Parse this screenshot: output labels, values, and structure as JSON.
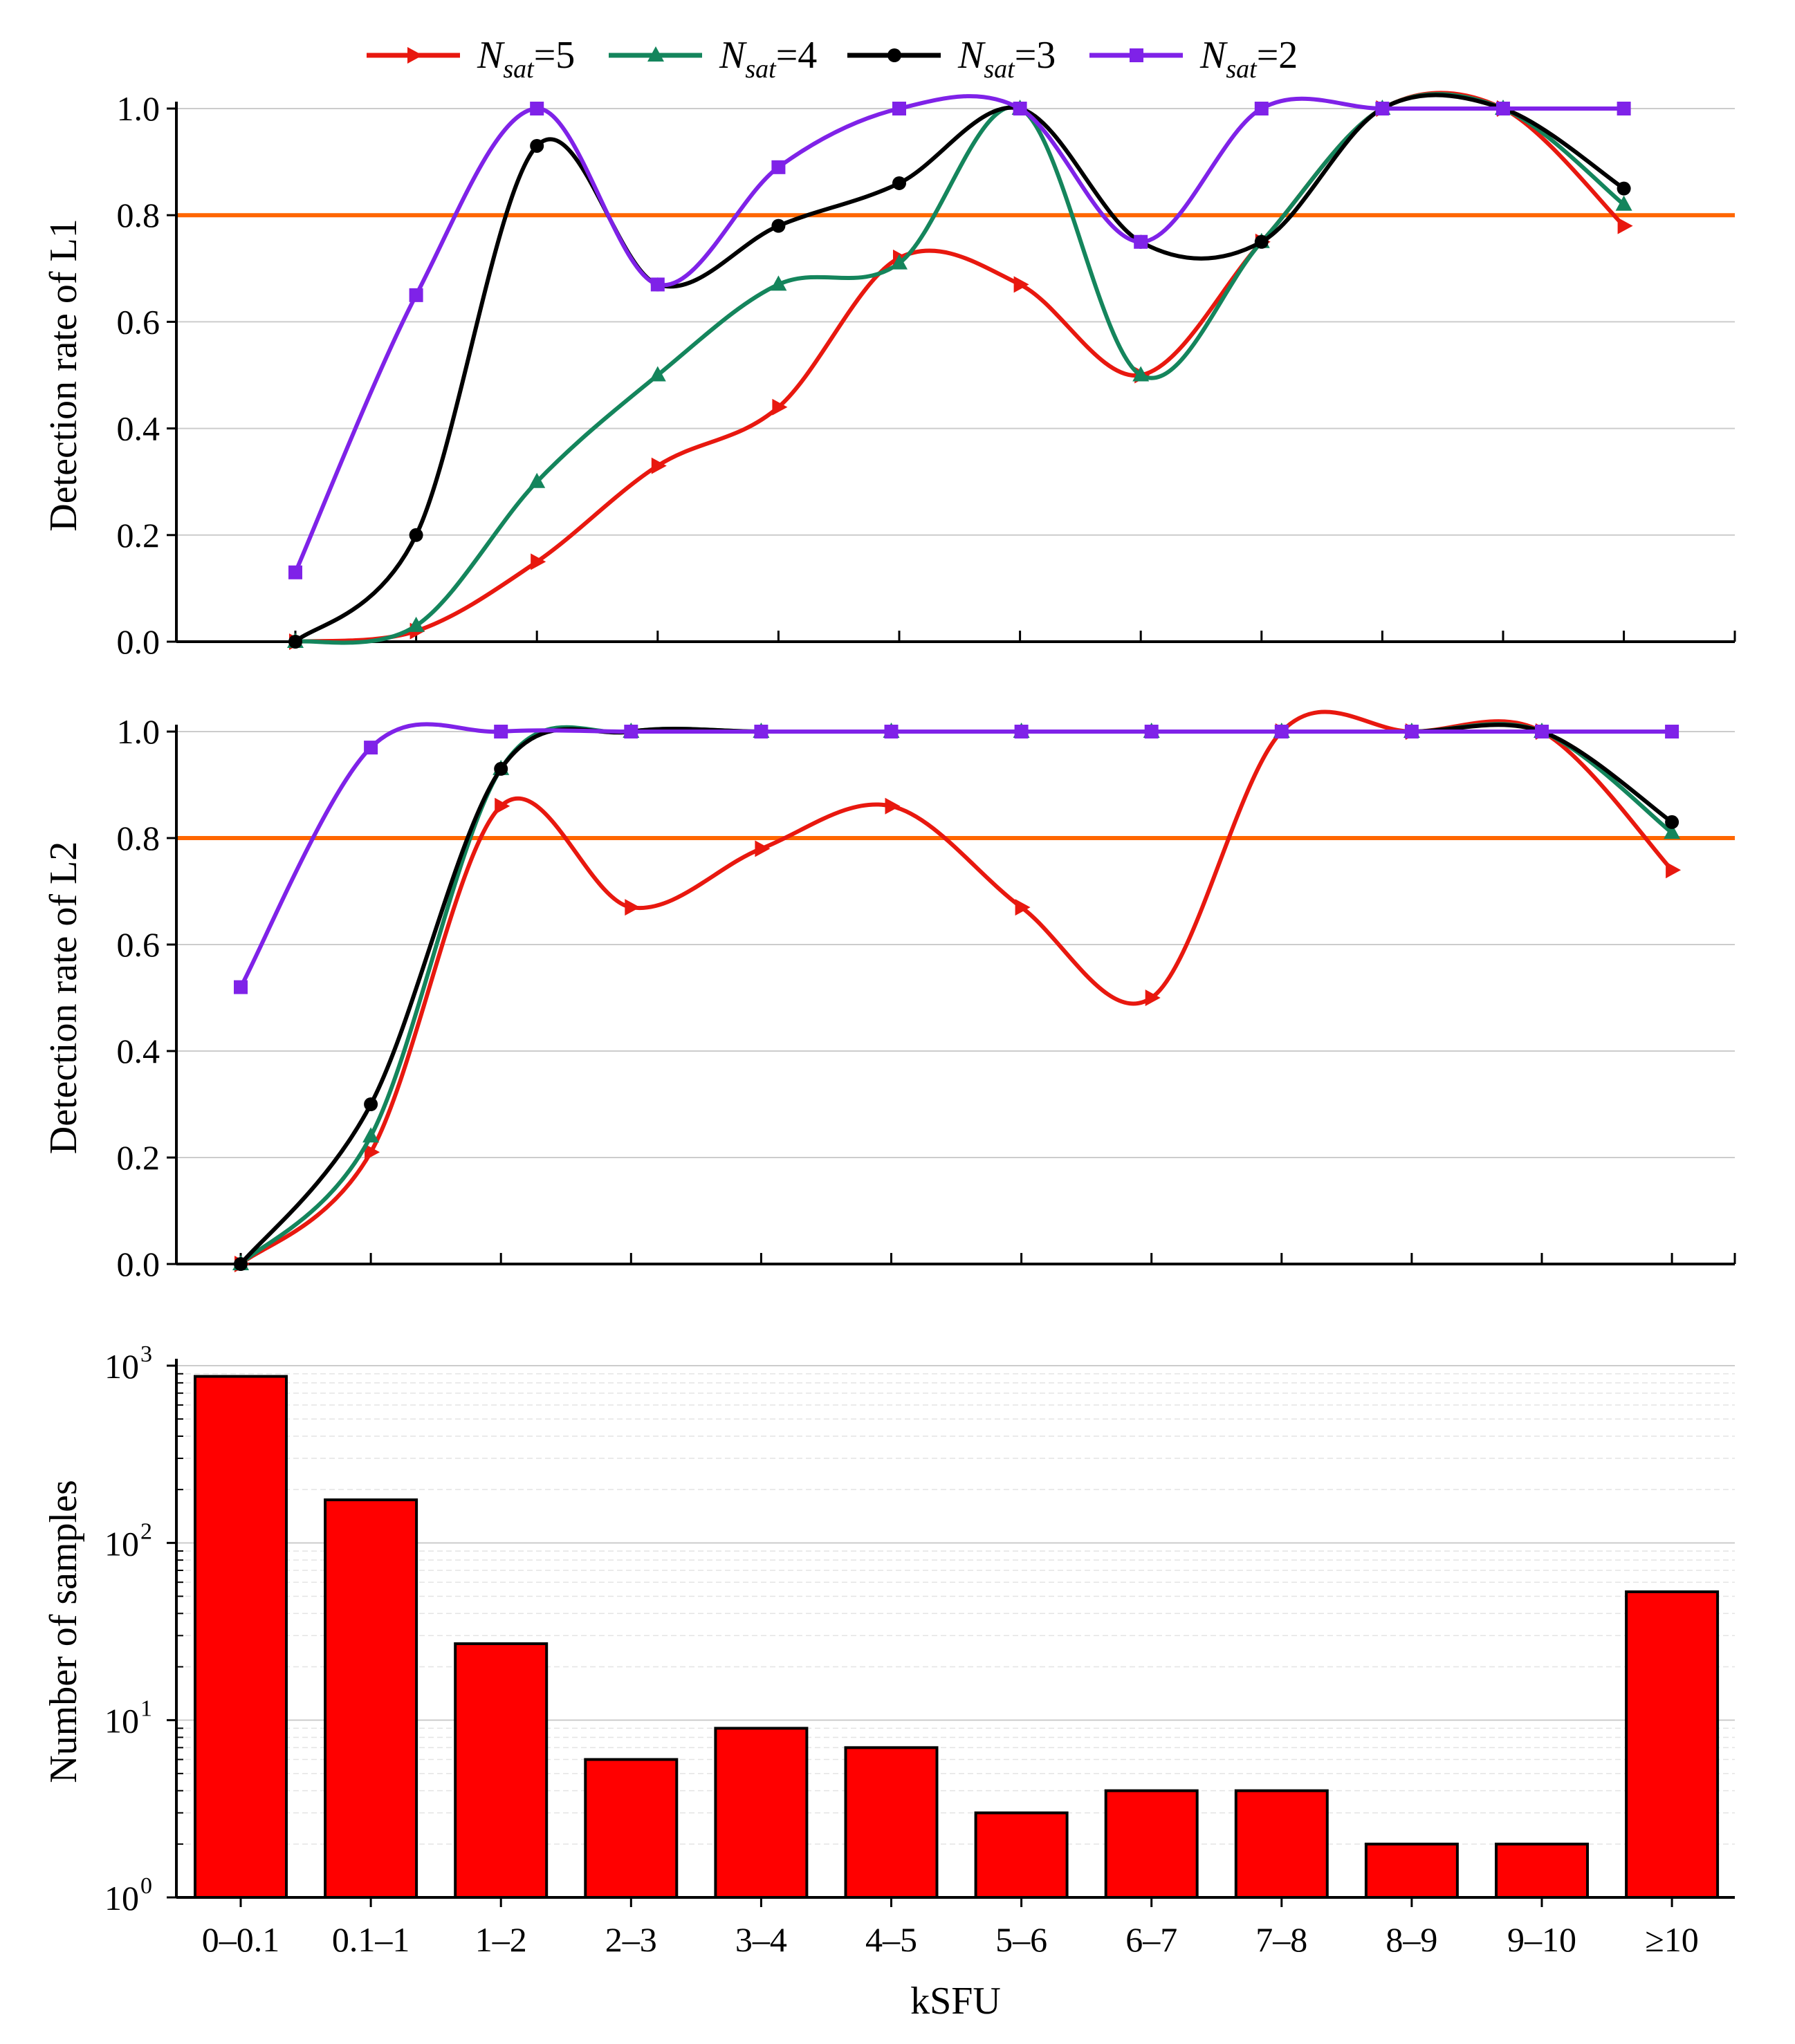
{
  "chart_data": [
    {
      "type": "line",
      "ylabel": "Detection rate of L1",
      "ylim": [
        0,
        1
      ],
      "yticks": [
        "0.0",
        "0.2",
        "0.4",
        "0.6",
        "0.8",
        "1.0"
      ],
      "threshold": 0.8,
      "grid": true,
      "x": [
        1,
        2,
        3,
        4,
        5,
        6,
        7,
        8,
        9,
        10,
        11,
        12
      ],
      "series": [
        {
          "name": "N_sat=5",
          "values": [
            0.0,
            0.02,
            0.15,
            0.33,
            0.44,
            0.72,
            0.67,
            0.5,
            0.75,
            1.0,
            1.0,
            0.78
          ]
        },
        {
          "name": "N_sat=4",
          "values": [
            0.0,
            0.03,
            0.3,
            0.5,
            0.67,
            0.71,
            1.0,
            0.5,
            0.75,
            1.0,
            1.0,
            0.82
          ]
        },
        {
          "name": "N_sat=3",
          "values": [
            0.0,
            0.2,
            0.93,
            0.67,
            0.78,
            0.86,
            1.0,
            0.75,
            0.75,
            1.0,
            1.0,
            0.85
          ]
        },
        {
          "name": "N_sat=2",
          "values": [
            0.13,
            0.65,
            1.0,
            0.67,
            0.89,
            1.0,
            1.0,
            0.75,
            1.0,
            1.0,
            1.0,
            1.0
          ]
        }
      ]
    },
    {
      "type": "line",
      "ylabel": "Detection rate of L2",
      "ylim": [
        0,
        1
      ],
      "yticks": [
        "0.0",
        "0.2",
        "0.4",
        "0.6",
        "0.8",
        "1.0"
      ],
      "threshold": 0.8,
      "grid": true,
      "categories": [
        "0–0.1",
        "0.1–1",
        "1–2",
        "2–3",
        "3–4",
        "4–5",
        "5–6",
        "6–7",
        "7–8",
        "8–9",
        "9–10",
        "≥10"
      ],
      "series": [
        {
          "name": "N_sat=5",
          "values": [
            0.0,
            0.21,
            0.86,
            0.67,
            0.78,
            0.86,
            0.67,
            0.5,
            1.0,
            1.0,
            1.0,
            0.74
          ]
        },
        {
          "name": "N_sat=4",
          "values": [
            0.0,
            0.24,
            0.93,
            1.0,
            1.0,
            1.0,
            1.0,
            1.0,
            1.0,
            1.0,
            1.0,
            0.81
          ]
        },
        {
          "name": "N_sat=3",
          "values": [
            0.0,
            0.3,
            0.93,
            1.0,
            1.0,
            1.0,
            1.0,
            1.0,
            1.0,
            1.0,
            1.0,
            0.83
          ]
        },
        {
          "name": "N_sat=2",
          "values": [
            0.52,
            0.97,
            1.0,
            1.0,
            1.0,
            1.0,
            1.0,
            1.0,
            1.0,
            1.0,
            1.0,
            1.0
          ]
        }
      ]
    },
    {
      "type": "bar",
      "ylabel": "Number of samples",
      "xlabel": "kSFU",
      "yscale": "log",
      "ylim": [
        1,
        1000
      ],
      "yticks": [
        {
          "base": "10",
          "exp": "0"
        },
        {
          "base": "10",
          "exp": "1"
        },
        {
          "base": "10",
          "exp": "2"
        },
        {
          "base": "10",
          "exp": "3"
        }
      ],
      "grid": true,
      "categories": [
        "0–0.1",
        "0.1–1",
        "1–2",
        "2–3",
        "3–4",
        "4–5",
        "5–6",
        "6–7",
        "7–8",
        "8–9",
        "9–10",
        "≥10"
      ],
      "values": [
        870,
        175,
        27,
        6,
        9,
        7,
        3,
        4,
        4,
        2,
        2,
        53
      ],
      "color": "#ff0000"
    }
  ],
  "legend": [
    {
      "symbol": "N",
      "sub": "sat",
      "eq": "=5",
      "color": "#e8180f",
      "marker": "triangle-right"
    },
    {
      "symbol": "N",
      "sub": "sat",
      "eq": "=4",
      "color": "#14855c",
      "marker": "triangle-up"
    },
    {
      "symbol": "N",
      "sub": "sat",
      "eq": "=3",
      "color": "#000000",
      "marker": "circle"
    },
    {
      "symbol": "N",
      "sub": "sat",
      "eq": "=2",
      "color": "#7f22e8",
      "marker": "square"
    }
  ],
  "colors": {
    "threshold": "#ff6600",
    "grid": "#cccccc",
    "bar": "#ff0000",
    "axis": "#000000"
  }
}
